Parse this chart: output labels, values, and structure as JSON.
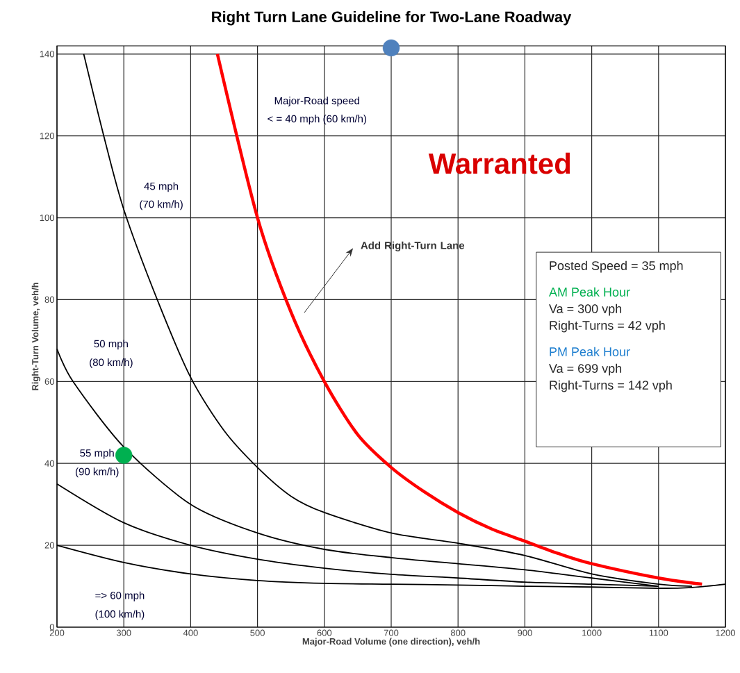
{
  "chart_data": {
    "type": "line",
    "title": "Right Turn Lane Guideline for Two-Lane Roadway",
    "xlabel": "Major-Road Volume (one direction), veh/h",
    "ylabel": "Right-Turn Volume, veh/h",
    "xlim": [
      200,
      1200
    ],
    "ylim": [
      0,
      142
    ],
    "xticks": [
      200,
      300,
      400,
      500,
      600,
      700,
      800,
      900,
      1000,
      1100,
      1200
    ],
    "yticks": [
      0,
      20,
      40,
      60,
      80,
      100,
      120,
      140
    ],
    "grid": true,
    "series": [
      {
        "color": "#000000",
        "x": [
          240,
          270,
          300,
          350,
          400,
          450,
          500,
          550,
          600,
          700,
          800,
          900,
          1000,
          1100,
          1150
        ],
        "values": [
          140,
          120,
          102,
          80,
          61,
          48,
          39,
          32,
          28,
          23,
          20.5,
          17.5,
          13,
          10.5,
          10
        ]
      },
      {
        "color": "#000000",
        "x": [
          200,
          224,
          300,
          400,
          500,
          600,
          700,
          800,
          900,
          1000,
          1100
        ],
        "values": [
          68,
          60,
          44,
          30,
          23,
          19,
          17,
          15.5,
          14,
          12,
          10
        ]
      },
      {
        "color": "#000000",
        "x": [
          200,
          300,
          400,
          500,
          600,
          700,
          800,
          900,
          1000,
          1100
        ],
        "values": [
          35,
          25.5,
          20,
          16.6,
          14.4,
          12.9,
          12,
          11,
          10.5,
          10
        ]
      },
      {
        "color": "#000000",
        "x": [
          200,
          300,
          400,
          500,
          600,
          700,
          800,
          900,
          1000,
          1100,
          1150,
          1200
        ],
        "values": [
          20,
          15.8,
          13,
          11.4,
          10.7,
          10.5,
          10.3,
          10,
          9.8,
          9.5,
          9.7,
          10.5
        ]
      },
      {
        "color": "#ff0000",
        "x": [
          440,
          500,
          550,
          600,
          650,
          700,
          750,
          800,
          850,
          900,
          950,
          1000,
          1100,
          1165
        ],
        "values": [
          140,
          100,
          77,
          60,
          47,
          39,
          33,
          28,
          24,
          21,
          18,
          15.5,
          12,
          10.5
        ]
      },
      {
        "type": "scatter",
        "color": "#00b050",
        "x": [
          300
        ],
        "values": [
          42
        ]
      },
      {
        "type": "scatter",
        "color": "#4f81bd",
        "x": [
          700
        ],
        "values": [
          141.5
        ]
      }
    ],
    "annotations": [
      "45 mph",
      "(70 km/h)",
      "50 mph",
      "(80 km/h)",
      "55 mph",
      "(90 km/h)",
      "=> 60 mph",
      "(100 km/h)",
      "Major-Road speed",
      "< = 40 mph (60 km/h)",
      "Warranted",
      "Add Right-Turn Lane",
      "Posted Speed = 35 mph",
      "AM Peak Hour",
      "Va = 300 vph",
      "Right-Turns = 42 vph",
      "PM Peak Hour",
      "Va = 699 vph",
      "Right-Turns = 142 vph"
    ]
  }
}
